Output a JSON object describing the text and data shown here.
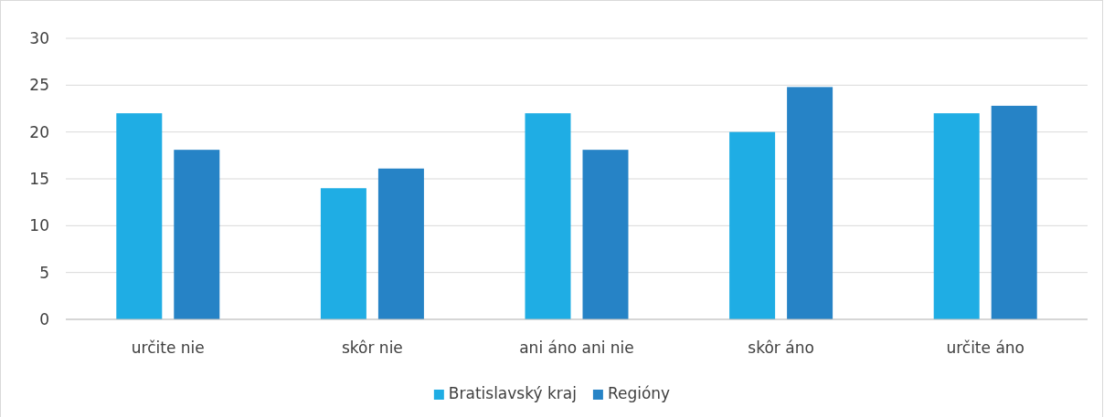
{
  "chart_data": {
    "type": "bar",
    "categories": [
      "určite nie",
      "skôr nie",
      "ani áno ani nie",
      "skôr áno",
      "určite áno"
    ],
    "series": [
      {
        "name": "Bratislavský kraj",
        "color": "#1fade4",
        "values": [
          22,
          14,
          22,
          20,
          22
        ]
      },
      {
        "name": "Regióny",
        "color": "#2683c6",
        "values": [
          18.1,
          16.1,
          18.1,
          24.8,
          22.8
        ]
      }
    ],
    "ylim": [
      0,
      30
    ],
    "yticks": [
      0,
      5,
      10,
      15,
      20,
      25,
      30
    ],
    "grid": "y",
    "legend": "bottom"
  }
}
